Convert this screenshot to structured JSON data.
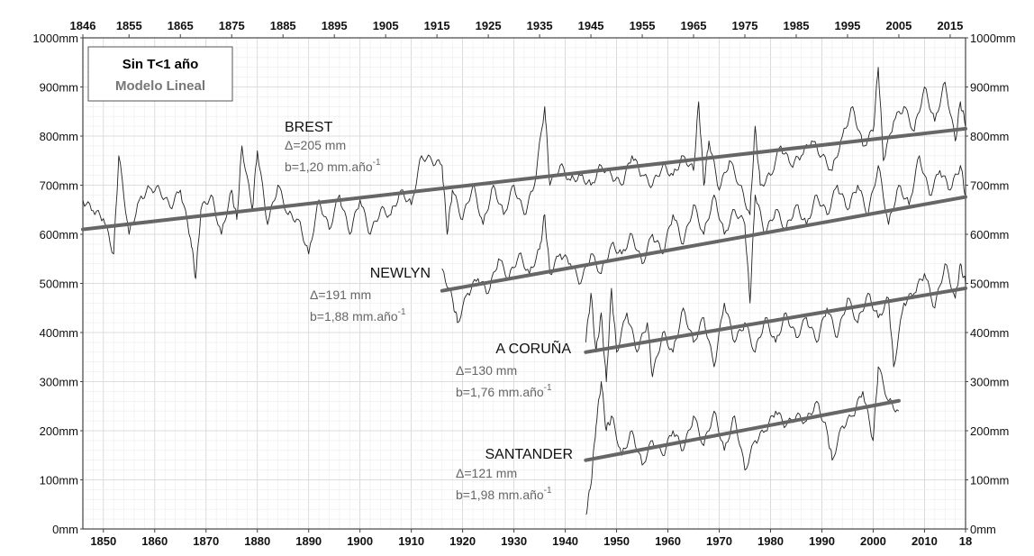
{
  "chart_data": {
    "type": "line",
    "title": "",
    "xlabel": "",
    "ylabel": "",
    "xlim": [
      1846,
      2018
    ],
    "ylim": [
      0,
      1000
    ],
    "grid": true,
    "y_unit": "mm",
    "x_ticks_bottom": [
      "1850",
      "1860",
      "1870",
      "1880",
      "1890",
      "1900",
      "1910",
      "1920",
      "1930",
      "1940",
      "1950",
      "1960",
      "1970",
      "1980",
      "1990",
      "2000",
      "2010",
      "18"
    ],
    "x_tick_values_bottom": [
      1850,
      1860,
      1870,
      1880,
      1890,
      1900,
      1910,
      1920,
      1930,
      1940,
      1950,
      1960,
      1970,
      1980,
      1990,
      2000,
      2010,
      2018
    ],
    "x_ticks_top": [
      "1846",
      "1855",
      "1865",
      "1875",
      "1885",
      "1895",
      "1905",
      "1915",
      "1925",
      "1935",
      "1945",
      "1955",
      "1965",
      "1975",
      "1985",
      "1995",
      "2005",
      "2015"
    ],
    "x_tick_values_top": [
      1846,
      1855,
      1865,
      1875,
      1885,
      1895,
      1905,
      1915,
      1925,
      1935,
      1945,
      1955,
      1965,
      1975,
      1985,
      1995,
      2005,
      2015
    ],
    "y_ticks": [
      "0mm",
      "100mm",
      "200mm",
      "300mm",
      "400mm",
      "500mm",
      "600mm",
      "700mm",
      "800mm",
      "900mm",
      "1000mm"
    ],
    "y_tick_values": [
      0,
      100,
      200,
      300,
      400,
      500,
      600,
      700,
      800,
      900,
      1000
    ],
    "legend": {
      "placement": "top-left",
      "entries": [
        {
          "label": "Sin T<1 año",
          "color": "#000000"
        },
        {
          "label": "Modelo Lineal",
          "color": "#777777"
        }
      ]
    },
    "series": [
      {
        "name": "BREST",
        "delta": "Δ=205 mm",
        "trend_label": "b=1,20 mm.año",
        "trend_exp": "-1",
        "trend": {
          "x": [
            1846,
            2018
          ],
          "y": [
            610,
            815
          ]
        },
        "anchor": [
          1846,
          669
        ],
        "points": [
          [
            1848,
            648
          ],
          [
            1850,
            632
          ],
          [
            1852,
            560
          ],
          [
            1853,
            760
          ],
          [
            1855,
            600
          ],
          [
            1857,
            670
          ],
          [
            1859,
            695
          ],
          [
            1861,
            690
          ],
          [
            1863,
            655
          ],
          [
            1865,
            690
          ],
          [
            1867,
            590
          ],
          [
            1868,
            510
          ],
          [
            1869,
            650
          ],
          [
            1871,
            680
          ],
          [
            1873,
            600
          ],
          [
            1875,
            690
          ],
          [
            1876,
            630
          ],
          [
            1877,
            780
          ],
          [
            1879,
            650
          ],
          [
            1880,
            770
          ],
          [
            1882,
            620
          ],
          [
            1884,
            700
          ],
          [
            1886,
            640
          ],
          [
            1888,
            630
          ],
          [
            1890,
            560
          ],
          [
            1892,
            670
          ],
          [
            1894,
            610
          ],
          [
            1896,
            680
          ],
          [
            1898,
            600
          ],
          [
            1900,
            670
          ],
          [
            1902,
            600
          ],
          [
            1904,
            650
          ],
          [
            1906,
            640
          ],
          [
            1908,
            690
          ],
          [
            1910,
            660
          ],
          [
            1912,
            760
          ],
          [
            1914,
            750
          ],
          [
            1916,
            740
          ],
          [
            1917,
            600
          ],
          [
            1918,
            690
          ],
          [
            1920,
            630
          ],
          [
            1922,
            700
          ],
          [
            1924,
            620
          ],
          [
            1926,
            700
          ],
          [
            1928,
            640
          ],
          [
            1930,
            700
          ],
          [
            1932,
            640
          ],
          [
            1934,
            700
          ],
          [
            1936,
            860
          ],
          [
            1937,
            700
          ],
          [
            1939,
            740
          ],
          [
            1941,
            710
          ],
          [
            1943,
            720
          ],
          [
            1945,
            700
          ],
          [
            1947,
            740
          ],
          [
            1949,
            720
          ],
          [
            1951,
            700
          ],
          [
            1953,
            760
          ],
          [
            1955,
            720
          ],
          [
            1957,
            700
          ],
          [
            1959,
            740
          ],
          [
            1961,
            720
          ],
          [
            1963,
            760
          ],
          [
            1965,
            730
          ],
          [
            1966,
            870
          ],
          [
            1967,
            700
          ],
          [
            1968,
            790
          ],
          [
            1970,
            690
          ],
          [
            1972,
            750
          ],
          [
            1974,
            700
          ],
          [
            1976,
            640
          ],
          [
            1977,
            820
          ],
          [
            1978,
            700
          ],
          [
            1980,
            720
          ],
          [
            1982,
            780
          ],
          [
            1984,
            740
          ],
          [
            1986,
            760
          ],
          [
            1988,
            790
          ],
          [
            1990,
            760
          ],
          [
            1992,
            730
          ],
          [
            1994,
            800
          ],
          [
            1996,
            860
          ],
          [
            1998,
            780
          ],
          [
            2000,
            810
          ],
          [
            2001,
            940
          ],
          [
            2002,
            750
          ],
          [
            2004,
            830
          ],
          [
            2006,
            860
          ],
          [
            2008,
            810
          ],
          [
            2010,
            900
          ],
          [
            2012,
            830
          ],
          [
            2014,
            910
          ],
          [
            2016,
            790
          ],
          [
            2017,
            870
          ],
          [
            2018,
            820
          ]
        ]
      },
      {
        "name": "NEWLYN",
        "delta": "Δ=191 mm",
        "trend_label": "b=1,88 mm.año",
        "trend_exp": "-1",
        "trend": {
          "x": [
            1916,
            2018
          ],
          "y": [
            485,
            676
          ]
        },
        "anchor": [
          1916,
          530
        ],
        "points": [
          [
            1918,
            470
          ],
          [
            1919,
            420
          ],
          [
            1921,
            480
          ],
          [
            1923,
            510
          ],
          [
            1925,
            480
          ],
          [
            1927,
            550
          ],
          [
            1929,
            510
          ],
          [
            1931,
            560
          ],
          [
            1933,
            520
          ],
          [
            1935,
            570
          ],
          [
            1936,
            640
          ],
          [
            1937,
            520
          ],
          [
            1939,
            560
          ],
          [
            1941,
            540
          ],
          [
            1943,
            500
          ],
          [
            1945,
            560
          ],
          [
            1947,
            520
          ],
          [
            1949,
            580
          ],
          [
            1951,
            560
          ],
          [
            1953,
            600
          ],
          [
            1955,
            540
          ],
          [
            1957,
            600
          ],
          [
            1959,
            560
          ],
          [
            1961,
            640
          ],
          [
            1963,
            580
          ],
          [
            1965,
            660
          ],
          [
            1967,
            600
          ],
          [
            1969,
            680
          ],
          [
            1971,
            600
          ],
          [
            1973,
            650
          ],
          [
            1975,
            620
          ],
          [
            1976,
            460
          ],
          [
            1977,
            680
          ],
          [
            1979,
            600
          ],
          [
            1981,
            650
          ],
          [
            1983,
            610
          ],
          [
            1985,
            660
          ],
          [
            1987,
            620
          ],
          [
            1989,
            680
          ],
          [
            1991,
            640
          ],
          [
            1993,
            700
          ],
          [
            1995,
            650
          ],
          [
            1997,
            700
          ],
          [
            1999,
            640
          ],
          [
            2001,
            740
          ],
          [
            2003,
            620
          ],
          [
            2005,
            700
          ],
          [
            2007,
            660
          ],
          [
            2009,
            760
          ],
          [
            2011,
            680
          ],
          [
            2013,
            730
          ],
          [
            2015,
            690
          ],
          [
            2017,
            740
          ],
          [
            2018,
            680
          ]
        ]
      },
      {
        "name": "A CORUÑA",
        "delta": "Δ=130 mm",
        "trend_label": "b=1,76 mm.año",
        "trend_exp": "-1",
        "trend": {
          "x": [
            1944,
            2018
          ],
          "y": [
            360,
            490
          ]
        },
        "anchor": [
          1944,
          380
        ],
        "points": [
          [
            1945,
            480
          ],
          [
            1946,
            360
          ],
          [
            1947,
            440
          ],
          [
            1948,
            300
          ],
          [
            1949,
            490
          ],
          [
            1950,
            360
          ],
          [
            1952,
            440
          ],
          [
            1954,
            360
          ],
          [
            1956,
            420
          ],
          [
            1957,
            310
          ],
          [
            1959,
            400
          ],
          [
            1961,
            360
          ],
          [
            1963,
            450
          ],
          [
            1965,
            380
          ],
          [
            1967,
            430
          ],
          [
            1969,
            330
          ],
          [
            1971,
            460
          ],
          [
            1973,
            380
          ],
          [
            1975,
            420
          ],
          [
            1977,
            360
          ],
          [
            1979,
            430
          ],
          [
            1981,
            380
          ],
          [
            1983,
            440
          ],
          [
            1985,
            390
          ],
          [
            1987,
            430
          ],
          [
            1989,
            380
          ],
          [
            1991,
            450
          ],
          [
            1993,
            390
          ],
          [
            1995,
            470
          ],
          [
            1997,
            420
          ],
          [
            1999,
            480
          ],
          [
            2001,
            430
          ],
          [
            2003,
            470
          ],
          [
            2004,
            330
          ],
          [
            2006,
            460
          ],
          [
            2008,
            480
          ],
          [
            2010,
            520
          ],
          [
            2012,
            450
          ],
          [
            2014,
            540
          ],
          [
            2016,
            470
          ],
          [
            2017,
            540
          ],
          [
            2018,
            500
          ]
        ]
      },
      {
        "name": "SANTANDER",
        "delta": "Δ=121 mm",
        "trend_label": "b=1,98 mm.año",
        "trend_exp": "-1",
        "trend": {
          "x": [
            1944,
            2005
          ],
          "y": [
            140,
            261
          ]
        },
        "anchor": [
          1944,
          30
        ],
        "points": [
          [
            1945,
            90
          ],
          [
            1946,
            210
          ],
          [
            1947,
            300
          ],
          [
            1948,
            200
          ],
          [
            1949,
            230
          ],
          [
            1951,
            150
          ],
          [
            1953,
            200
          ],
          [
            1955,
            130
          ],
          [
            1957,
            180
          ],
          [
            1959,
            150
          ],
          [
            1961,
            200
          ],
          [
            1963,
            160
          ],
          [
            1965,
            230
          ],
          [
            1967,
            170
          ],
          [
            1969,
            240
          ],
          [
            1971,
            160
          ],
          [
            1973,
            230
          ],
          [
            1975,
            120
          ],
          [
            1977,
            180
          ],
          [
            1979,
            200
          ],
          [
            1981,
            240
          ],
          [
            1983,
            210
          ],
          [
            1985,
            230
          ],
          [
            1987,
            220
          ],
          [
            1989,
            260
          ],
          [
            1991,
            200
          ],
          [
            1992,
            140
          ],
          [
            1994,
            210
          ],
          [
            1996,
            230
          ],
          [
            1998,
            280
          ],
          [
            2000,
            180
          ],
          [
            2001,
            330
          ],
          [
            2003,
            260
          ],
          [
            2005,
            240
          ]
        ]
      }
    ]
  }
}
